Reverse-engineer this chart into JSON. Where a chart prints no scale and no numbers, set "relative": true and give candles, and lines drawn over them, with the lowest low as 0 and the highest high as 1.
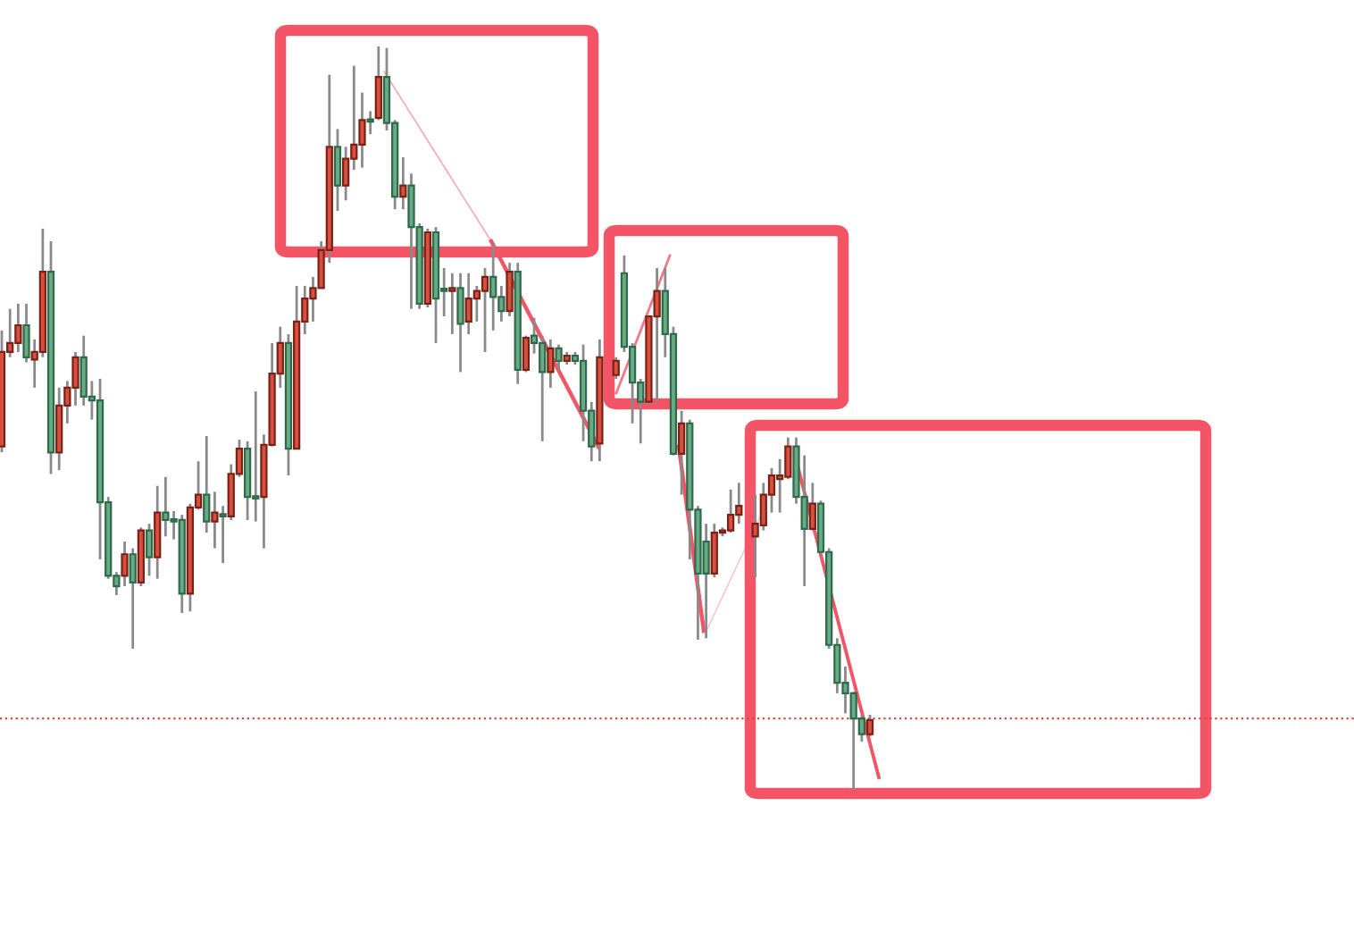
{
  "chart_data": {
    "type": "candlestick",
    "relative": true,
    "categories": [
      null,
      null,
      null,
      null,
      null,
      null,
      null,
      null,
      null,
      null,
      null,
      null,
      null,
      null,
      null,
      null,
      null,
      null,
      null,
      null,
      null,
      null,
      null,
      null,
      null,
      null,
      null,
      null,
      null,
      null,
      null,
      null,
      null,
      null,
      null,
      null,
      null,
      null,
      null,
      null,
      null,
      null,
      null,
      null,
      null,
      null,
      null,
      null,
      null,
      null,
      null,
      null,
      null,
      null,
      null,
      null,
      null,
      null,
      null,
      null,
      null,
      null,
      null,
      null,
      null,
      null,
      null,
      null,
      null,
      null,
      null,
      null,
      null,
      null,
      null,
      null,
      null,
      null,
      null,
      null,
      null,
      null,
      null,
      null,
      null,
      null,
      null,
      null,
      null,
      null,
      null,
      null,
      null,
      null,
      null,
      null,
      null,
      null,
      null,
      null,
      null,
      null,
      null,
      null,
      null,
      null,
      null
    ],
    "ohlc": [
      [
        0.462,
        0.618,
        0.454,
        0.589
      ],
      [
        0.589,
        0.647,
        0.582,
        0.601
      ],
      [
        0.601,
        0.654,
        0.589,
        0.625
      ],
      [
        0.625,
        0.654,
        0.575,
        0.582
      ],
      [
        0.579,
        0.606,
        0.541,
        0.589
      ],
      [
        0.589,
        0.755,
        0.582,
        0.697
      ],
      [
        0.697,
        0.738,
        0.425,
        0.454
      ],
      [
        0.454,
        0.541,
        0.43,
        0.517
      ],
      [
        0.517,
        0.55,
        0.493,
        0.541
      ],
      [
        0.541,
        0.589,
        0.517,
        0.582
      ],
      [
        0.582,
        0.611,
        0.517,
        0.529
      ],
      [
        0.529,
        0.55,
        0.498,
        0.524
      ],
      [
        0.524,
        0.553,
        0.31,
        0.387
      ],
      [
        0.387,
        0.394,
        0.284,
        0.288
      ],
      [
        0.288,
        0.293,
        0.262,
        0.274
      ],
      [
        0.288,
        0.334,
        0.274,
        0.317
      ],
      [
        0.317,
        0.325,
        0.19,
        0.279
      ],
      [
        0.279,
        0.353,
        0.274,
        0.349
      ],
      [
        0.349,
        0.358,
        0.288,
        0.313
      ],
      [
        0.313,
        0.409,
        0.284,
        0.373
      ],
      [
        0.373,
        0.421,
        0.341,
        0.363
      ],
      [
        0.363,
        0.375,
        0.337,
        0.361
      ],
      [
        0.363,
        0.37,
        0.238,
        0.264
      ],
      [
        0.264,
        0.385,
        0.24,
        0.38
      ],
      [
        0.38,
        0.442,
        0.377,
        0.397
      ],
      [
        0.397,
        0.476,
        0.346,
        0.361
      ],
      [
        0.361,
        0.401,
        0.325,
        0.373
      ],
      [
        0.37,
        0.382,
        0.305,
        0.368
      ],
      [
        0.368,
        0.438,
        0.363,
        0.425
      ],
      [
        0.425,
        0.471,
        0.421,
        0.459
      ],
      [
        0.459,
        0.469,
        0.363,
        0.394
      ],
      [
        0.394,
        0.536,
        0.361,
        0.392
      ],
      [
        0.394,
        0.478,
        0.325,
        0.464
      ],
      [
        0.464,
        0.601,
        0.462,
        0.56
      ],
      [
        0.56,
        0.623,
        0.541,
        0.601
      ],
      [
        0.601,
        0.613,
        0.423,
        0.459
      ],
      [
        0.459,
        0.678,
        0.459,
        0.63
      ],
      [
        0.63,
        0.678,
        0.613,
        0.661
      ],
      [
        0.661,
        0.69,
        0.63,
        0.675
      ],
      [
        0.675,
        0.738,
        0.675,
        0.726
      ],
      [
        0.726,
        0.962,
        0.709,
        0.865
      ],
      [
        0.865,
        0.889,
        0.779,
        0.813
      ],
      [
        0.813,
        0.865,
        0.793,
        0.849
      ],
      [
        0.849,
        0.974,
        0.834,
        0.868
      ],
      [
        0.868,
        0.938,
        0.837,
        0.901
      ],
      [
        0.901,
        0.913,
        0.882,
        0.899
      ],
      [
        0.904,
        1.0,
        0.901,
        0.959
      ],
      [
        0.959,
        0.998,
        0.887,
        0.897
      ],
      [
        0.897,
        0.901,
        0.781,
        0.798
      ],
      [
        0.798,
        0.851,
        0.781,
        0.813
      ],
      [
        0.813,
        0.829,
        0.647,
        0.757
      ],
      [
        0.757,
        0.762,
        0.647,
        0.654
      ],
      [
        0.654,
        0.755,
        0.649,
        0.75
      ],
      [
        0.75,
        0.757,
        0.601,
        0.661
      ],
      [
        0.673,
        0.702,
        0.637,
        0.671
      ],
      [
        0.671,
        0.695,
        0.613,
        0.675
      ],
      [
        0.675,
        0.695,
        0.562,
        0.627
      ],
      [
        0.63,
        0.695,
        0.613,
        0.661
      ],
      [
        0.661,
        0.678,
        0.63,
        0.671
      ],
      [
        0.671,
        0.702,
        0.589,
        0.69
      ],
      [
        0.69,
        0.733,
        0.618,
        0.663
      ],
      [
        0.663,
        0.678,
        0.63,
        0.644
      ],
      [
        0.644,
        0.709,
        0.637,
        0.697
      ],
      [
        0.697,
        0.709,
        0.546,
        0.565
      ],
      [
        0.565,
        0.611,
        0.562,
        0.608
      ],
      [
        0.611,
        0.635,
        0.587,
        0.601
      ],
      [
        0.601,
        0.611,
        0.469,
        0.562
      ],
      [
        0.562,
        0.606,
        0.541,
        0.594
      ],
      [
        0.594,
        0.599,
        0.565,
        0.577
      ],
      [
        0.577,
        0.589,
        0.572,
        0.584
      ],
      [
        0.584,
        0.589,
        0.572,
        0.577
      ],
      [
        0.577,
        0.599,
        0.469,
        0.51
      ],
      [
        0.51,
        0.522,
        0.442,
        0.462
      ],
      [
        0.466,
        0.606,
        0.442,
        0.582
      ],
      null,
      [
        0.558,
        0.582,
        0.553,
        0.577
      ],
      [
        0.695,
        0.719,
        0.589,
        0.596
      ],
      [
        0.596,
        0.601,
        0.493,
        0.548
      ],
      [
        0.548,
        0.553,
        0.466,
        0.522
      ],
      [
        0.522,
        0.637,
        0.517,
        0.637
      ],
      [
        0.637,
        0.702,
        0.522,
        0.671
      ],
      [
        0.671,
        0.702,
        0.582,
        0.613
      ],
      [
        0.613,
        0.623,
        0.45,
        0.452
      ],
      [
        0.452,
        0.51,
        0.397,
        0.493
      ],
      [
        0.493,
        0.498,
        0.31,
        0.377
      ],
      [
        0.377,
        0.382,
        0.202,
        0.291
      ],
      [
        0.334,
        0.358,
        0.204,
        0.291
      ],
      [
        0.291,
        0.358,
        0.286,
        0.346
      ],
      [
        0.346,
        0.353,
        0.341,
        0.349
      ],
      [
        0.349,
        0.404,
        0.346,
        0.37
      ],
      [
        0.37,
        0.413,
        0.358,
        0.382
      ],
      null,
      [
        0.341,
        0.397,
        0.286,
        0.358
      ],
      [
        0.356,
        0.413,
        0.349,
        0.397
      ],
      [
        0.397,
        0.433,
        0.373,
        0.423
      ],
      [
        0.418,
        0.445,
        0.373,
        0.423
      ],
      [
        0.421,
        0.474,
        0.418,
        0.462
      ],
      [
        0.462,
        0.474,
        0.385,
        0.394
      ],
      [
        0.394,
        0.45,
        0.274,
        0.351
      ],
      [
        0.351,
        0.413,
        0.349,
        0.385
      ],
      [
        0.385,
        0.389,
        0.317,
        0.32
      ],
      [
        0.32,
        0.325,
        0.19,
        0.195
      ],
      [
        0.195,
        0.204,
        0.13,
        0.144
      ],
      [
        0.144,
        0.166,
        0.103,
        0.13
      ],
      [
        0.13,
        0.132,
        0.0,
        0.096
      ],
      [
        0.096,
        0.101,
        0.065,
        0.075
      ],
      [
        0.075,
        0.101,
        0.072,
        0.094
      ]
    ],
    "ref_lines": [
      {
        "axis": "y",
        "value": 0.096,
        "color": "#e8433a",
        "line_style": "dotted"
      }
    ]
  }
}
